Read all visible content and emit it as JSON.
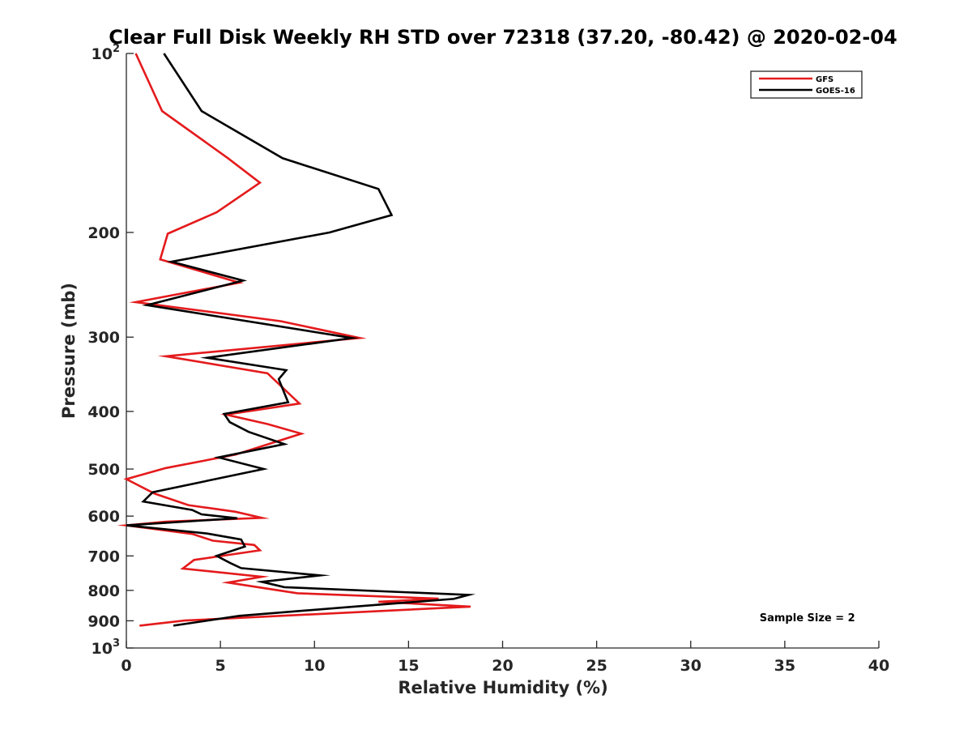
{
  "chart_data": {
    "type": "line",
    "title": "Clear Full Disk Weekly RH STD over 72318 (37.20, -80.42) @ 2020-02-04",
    "xlabel": "Relative Humidity (%)",
    "ylabel": "Pressure (mb)",
    "xlim": [
      0,
      40
    ],
    "ylim": [
      100,
      1000
    ],
    "y_scale": "log",
    "y_reversed": true,
    "grid": false,
    "legend_position": "top-right",
    "x_ticks": [
      0,
      5,
      10,
      15,
      20,
      25,
      30,
      35,
      40
    ],
    "x_tick_labels": [
      "0",
      "5",
      "10",
      "15",
      "20",
      "25",
      "30",
      "35",
      "40"
    ],
    "y_tick_labels": [
      {
        "value": 100,
        "base": "10",
        "sup": "2"
      },
      {
        "value": 200,
        "base": "200",
        "sup": ""
      },
      {
        "value": 300,
        "base": "300",
        "sup": ""
      },
      {
        "value": 400,
        "base": "400",
        "sup": ""
      },
      {
        "value": 500,
        "base": "500",
        "sup": ""
      },
      {
        "value": 600,
        "base": "600",
        "sup": ""
      },
      {
        "value": 700,
        "base": "700",
        "sup": ""
      },
      {
        "value": 800,
        "base": "800",
        "sup": ""
      },
      {
        "value": 900,
        "base": "900",
        "sup": ""
      },
      {
        "value": 1000,
        "base": "10",
        "sup": "3"
      }
    ],
    "annotations": [
      {
        "text": "Sample Size = 2",
        "x": 36.2,
        "y": 901
      }
    ],
    "series": [
      {
        "name": "GFS",
        "color": "#e41a1c",
        "x": [
          0.5,
          1.9,
          5.4,
          7.1,
          4.8,
          2.2,
          1.8,
          6.0,
          0.5,
          8.2,
          12.4,
          2.1,
          7.5,
          9.2,
          5.3,
          7.5,
          9.3,
          5.8,
          2.1,
          0.0,
          1.5,
          3.3,
          5.8,
          7.2,
          2.1,
          0.0,
          3.5,
          4.6,
          6.8,
          7.1,
          3.6,
          3.0,
          7.2,
          5.4,
          7.1,
          9.1,
          16.6,
          13.4,
          18.3,
          3.1,
          0.7
        ],
        "y": [
          100,
          125,
          150,
          165,
          185,
          201,
          222,
          243,
          262,
          282,
          301,
          323,
          345,
          388,
          405,
          420,
          436,
          473,
          498,
          520,
          550,
          575,
          590,
          604,
          613,
          622,
          643,
          660,
          671,
          685,
          711,
          735,
          759,
          776,
          791,
          809,
          826,
          836,
          852,
          899,
          917
        ]
      },
      {
        "name": "GOES-16",
        "color": "#000000",
        "x": [
          2.0,
          4.0,
          8.3,
          13.4,
          14.1,
          10.8,
          2.4,
          6.2,
          1.1,
          12.0,
          4.3,
          8.5,
          8.1,
          8.6,
          5.2,
          5.5,
          6.5,
          8.4,
          4.9,
          7.3,
          1.4,
          0.9,
          3.5,
          4.0,
          5.9,
          0.0,
          4.3,
          6.1,
          6.3,
          4.8,
          5.5,
          6.1,
          10.3,
          7.2,
          8.4,
          18.2,
          17.4,
          12.1,
          6.0,
          2.5
        ],
        "y": [
          100,
          125,
          150,
          169,
          187,
          200,
          224,
          241,
          265,
          301,
          325,
          341,
          353,
          386,
          404,
          417,
          433,
          454,
          478,
          500,
          547,
          567,
          586,
          596,
          605,
          622,
          642,
          657,
          675,
          700,
          719,
          734,
          755,
          774,
          790,
          814,
          827,
          852,
          883,
          917
        ]
      }
    ]
  }
}
